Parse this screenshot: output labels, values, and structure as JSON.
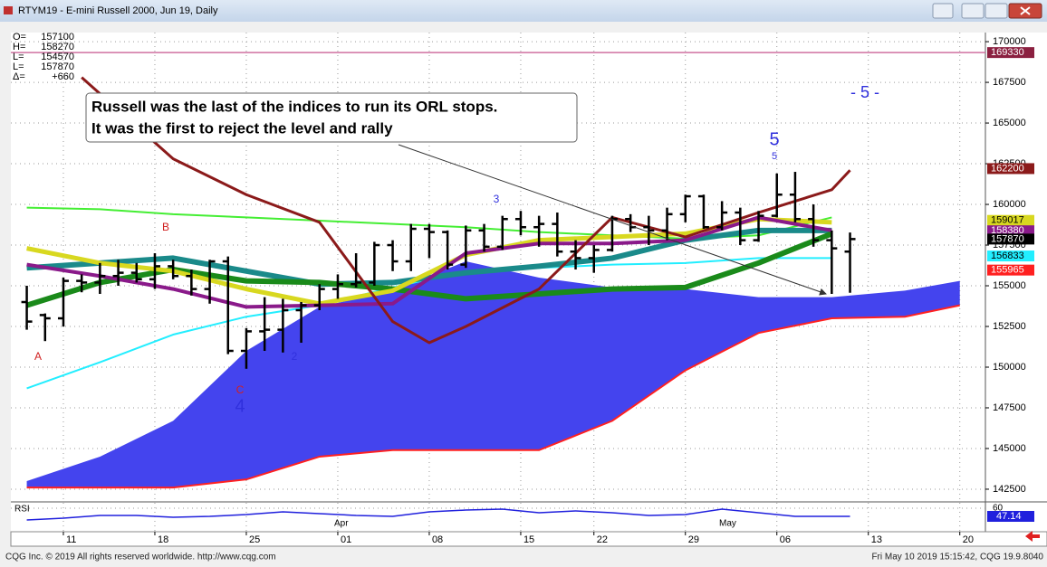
{
  "window_title": "RTYM19 - E-mini Russell 2000, Jun 19, Daily",
  "footer_left": "CQG Inc. © 2019 All rights reserved worldwide. http://www.cqg.com",
  "footer_right": "Fri May 10 2019 15:15:42, CQG 19.9.8040",
  "chart_data": {
    "type": "ohlc",
    "info": {
      "labels": [
        "O=",
        "H=",
        "L=",
        "L=",
        "Δ="
      ],
      "values": [
        157100,
        158270,
        154570,
        157870,
        660
      ],
      "value_labels": [
        null,
        null,
        null,
        null,
        "+660"
      ]
    },
    "x": [
      -2,
      -1,
      0,
      1,
      2,
      3,
      4,
      5,
      6,
      7,
      8,
      9,
      10,
      11,
      12,
      13,
      14,
      15,
      16,
      17,
      18,
      19,
      20,
      21,
      22,
      23,
      24,
      25,
      26,
      27,
      28,
      29,
      30,
      31,
      32,
      33,
      34,
      35,
      36,
      37,
      38,
      39,
      40,
      41,
      42,
      43
    ],
    "open": [
      154000,
      153200,
      153000,
      155300,
      155200,
      155600,
      155800,
      155400,
      156200,
      155600,
      154800,
      156500,
      151000,
      152200,
      152300,
      153500,
      153800,
      154800,
      155100,
      155200,
      157500,
      156500,
      158500,
      158300,
      156300,
      158400,
      157400,
      159100,
      158600,
      158800,
      157100,
      156700,
      157200,
      159100,
      158600,
      158400,
      159400,
      160500,
      158600,
      159500,
      157800,
      159300,
      160600,
      159100,
      157800,
      157100
    ],
    "high": [
      155000,
      153300,
      155500,
      155700,
      156400,
      156600,
      156400,
      157000,
      156600,
      156000,
      156600,
      156800,
      152400,
      154300,
      154200,
      154000,
      155100,
      155700,
      157000,
      157700,
      157800,
      158800,
      158800,
      158400,
      158700,
      158800,
      159300,
      159600,
      159300,
      159500,
      157800,
      157500,
      159300,
      159400,
      159300,
      159800,
      160600,
      160600,
      160200,
      159800,
      159600,
      161900,
      162000,
      160000,
      158400,
      158270
    ],
    "low": [
      152300,
      151600,
      152500,
      154600,
      154500,
      155000,
      155200,
      154800,
      155400,
      154400,
      153900,
      150800,
      149900,
      151000,
      150900,
      151500,
      153500,
      154200,
      154900,
      155000,
      155900,
      155900,
      156700,
      156000,
      156100,
      157100,
      157200,
      158100,
      157400,
      156800,
      156000,
      155800,
      157100,
      158300,
      157500,
      157800,
      158900,
      158500,
      158400,
      157500,
      157700,
      159200,
      158900,
      157400,
      154500,
      154570
    ],
    "close": [
      152800,
      153000,
      155300,
      155200,
      155600,
      155800,
      155400,
      156200,
      155600,
      154800,
      156500,
      151000,
      152200,
      152300,
      153500,
      153800,
      154800,
      155100,
      155200,
      157500,
      156500,
      158500,
      158300,
      156300,
      158400,
      157400,
      159100,
      158600,
      158800,
      157100,
      156700,
      157200,
      159100,
      158600,
      158400,
      159400,
      160500,
      158600,
      159500,
      157800,
      159300,
      160600,
      159100,
      157800,
      157300,
      157870
    ],
    "bar_color": "#000000",
    "cloud": {
      "color": "#4444ee",
      "x": [
        -2,
        2,
        6,
        10,
        14,
        18,
        22,
        26,
        30,
        34,
        38,
        42,
        46,
        49
      ],
      "top": [
        143000,
        144500,
        146700,
        151000,
        153700,
        154700,
        156500,
        155500,
        154900,
        154800,
        154300,
        154300,
        154700,
        155300
      ],
      "bottom": [
        142600,
        142600,
        142600,
        143100,
        144500,
        144900,
        144900,
        144900,
        146700,
        149800,
        152100,
        153000,
        153100,
        153800
      ],
      "bottom_color": "#ff2020"
    },
    "series": [
      {
        "color": "#44ee33",
        "width": 2,
        "x": [
          -2,
          2,
          6,
          10,
          14,
          18,
          22,
          26,
          30,
          34,
          38,
          42
        ],
        "values": [
          159800,
          159700,
          159400,
          159200,
          159000,
          158800,
          158600,
          158300,
          158100,
          157900,
          158100,
          159200
        ]
      },
      {
        "color": "#22eeff",
        "width": 2,
        "x": [
          -2,
          2,
          6,
          10,
          14,
          18,
          22,
          26,
          30,
          34,
          38,
          42
        ],
        "values": [
          148700,
          150300,
          152000,
          153100,
          153800,
          154900,
          155900,
          156100,
          156300,
          156400,
          156700,
          156700
        ]
      },
      {
        "color": "#1a8a8a",
        "width": 6,
        "x": [
          -2,
          2,
          6,
          10,
          14,
          18,
          22,
          26,
          30,
          34,
          38,
          42
        ],
        "values": [
          156100,
          156400,
          156700,
          155900,
          155100,
          155200,
          155800,
          156200,
          156700,
          157800,
          158400,
          158400
        ]
      },
      {
        "color": "#1a8a1a",
        "width": 6,
        "x": [
          -2,
          2,
          6,
          10,
          14,
          18,
          22,
          26,
          30,
          34,
          38,
          42
        ],
        "values": [
          153800,
          155200,
          156000,
          155300,
          155200,
          154800,
          154200,
          154500,
          154800,
          154900,
          156400,
          158200
        ]
      },
      {
        "color": "#d8d820",
        "width": 5,
        "x": [
          -2,
          2,
          6,
          10,
          14,
          18,
          22,
          26,
          30,
          34,
          38,
          42
        ],
        "values": [
          157300,
          156400,
          155900,
          154800,
          153900,
          154700,
          156900,
          157800,
          158000,
          158200,
          159100,
          158900
        ]
      },
      {
        "color": "#8a1a8a",
        "width": 4,
        "x": [
          -2,
          2,
          6,
          10,
          14,
          18,
          22,
          26,
          30,
          34,
          38,
          42
        ],
        "values": [
          156300,
          155600,
          154800,
          153700,
          153800,
          153900,
          157000,
          157600,
          157600,
          157800,
          159200,
          158400
        ]
      },
      {
        "color": "#8b1a1a",
        "width": 3,
        "x": [
          1,
          6,
          10,
          14,
          18,
          20,
          22,
          26,
          30,
          34,
          38,
          42,
          43
        ],
        "values": [
          167800,
          162800,
          160600,
          158900,
          152800,
          151500,
          152500,
          154800,
          159200,
          158000,
          159500,
          160900,
          162100
        ]
      }
    ],
    "hline": {
      "value": 169330,
      "color": "#d070a0"
    },
    "price_labels": [
      {
        "value": 169330,
        "color": "#8b2040",
        "text_color": "#ffffff"
      },
      {
        "value": 162200,
        "color": "#8b1a1a",
        "text_color": "#ffffff"
      },
      {
        "value": 159017,
        "color": "#d8d820",
        "text_color": "#000000"
      },
      {
        "value": 158380,
        "color": "#8a1a8a",
        "text_color": "#ffffff"
      },
      {
        "value": 157870,
        "color": "#000000",
        "text_color": "#ffffff"
      },
      {
        "value": 156833,
        "color": "#22eeff",
        "text_color": "#000000"
      },
      {
        "value": 155965,
        "color": "#ff2020",
        "text_color": "#ffffff"
      }
    ],
    "annotation": [
      "Russell was the last of the indices to run its ORL stops.",
      "It was the first to reject the level and rally"
    ],
    "wave_labels": [
      "A",
      "B",
      "C",
      "4",
      "2",
      "3",
      "5",
      "5",
      "- 5 -"
    ],
    "months": [
      "Apr",
      "May"
    ],
    "xlim": [
      -2.87,
      50.4
    ],
    "xticks": [
      {
        "value": 0,
        "label": "11"
      },
      {
        "value": 5,
        "label": "18"
      },
      {
        "value": 10,
        "label": "25"
      },
      {
        "value": 15,
        "label": "01"
      },
      {
        "value": 20,
        "label": "08"
      },
      {
        "value": 25,
        "label": "15"
      },
      {
        "value": 29,
        "label": "22"
      },
      {
        "value": 34,
        "label": "29"
      },
      {
        "value": 39,
        "label": "06"
      },
      {
        "value": 44,
        "label": "13"
      },
      {
        "value": 49,
        "label": "20"
      }
    ],
    "ylim": [
      141720,
      170560
    ],
    "yticks": [
      170000,
      167500,
      165000,
      162500,
      160000,
      157500,
      155000,
      152500,
      150000,
      147500,
      145000,
      142500
    ],
    "grid": true,
    "rsi": {
      "label": "RSI",
      "color": "#2020dd",
      "x": [
        -2,
        0,
        2,
        4,
        6,
        8,
        10,
        12,
        14,
        16,
        18,
        20,
        22,
        24,
        26,
        28,
        30,
        32,
        34,
        36,
        38,
        40,
        43
      ],
      "values": [
        41.4,
        44.3,
        48.6,
        48.6,
        45.7,
        47.1,
        50.0,
        54.3,
        51.4,
        48.6,
        47.1,
        54.3,
        57.1,
        58.6,
        52.9,
        55.7,
        52.9,
        48.6,
        50.0,
        58.6,
        52.9,
        47.1,
        47.14
      ],
      "ylim": [
        22.8,
        68.6
      ],
      "yticks": [
        60
      ]
    }
  }
}
